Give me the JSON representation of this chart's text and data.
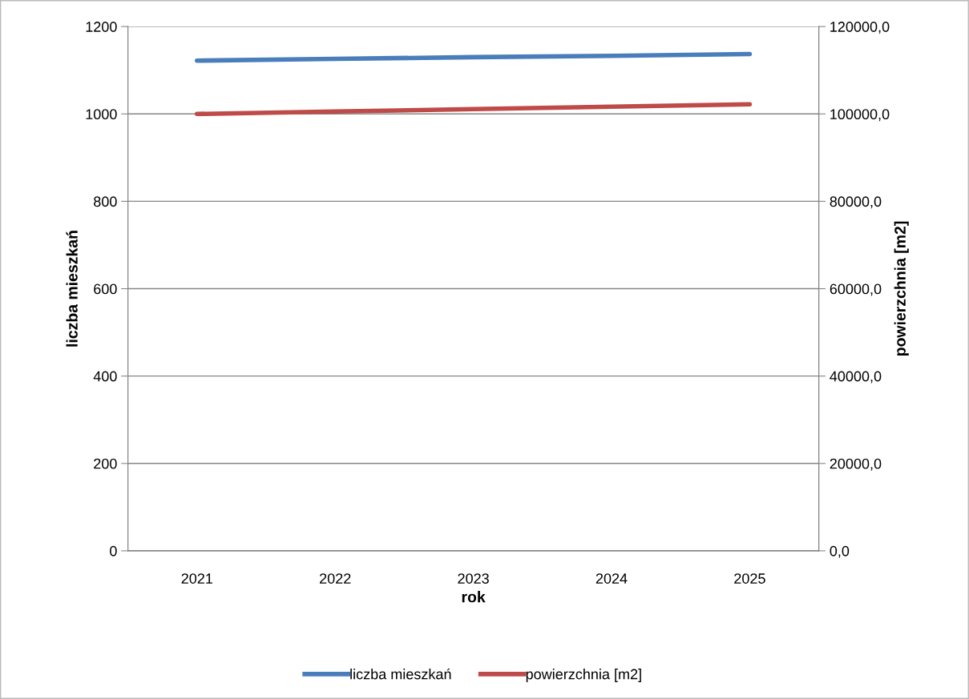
{
  "chart_data": {
    "type": "line",
    "xlabel": "rok",
    "ylabel": "liczba mieszkań",
    "y2label": "powierzchnia [m2]",
    "categories": [
      "2021",
      "2022",
      "2023",
      "2024",
      "2025"
    ],
    "series": [
      {
        "name": "liczba mieszkań",
        "color": "#4a7ebb",
        "values": [
          1122,
          1126,
          1130,
          1133,
          1137
        ]
      },
      {
        "name": "powierzchnia [m2]",
        "color": "#be4b48",
        "axis": "y2",
        "values": [
          100000,
          100550,
          101100,
          101650,
          102200
        ]
      }
    ],
    "ylim": [
      0,
      1200
    ],
    "yticks": [
      0,
      200,
      400,
      600,
      800,
      1000,
      1200
    ],
    "y2lim": [
      0,
      120000
    ],
    "y2ticks": [
      {
        "value": 0,
        "label": "0,0"
      },
      {
        "value": 20000,
        "label": "20000,0"
      },
      {
        "value": 40000,
        "label": "40000,0"
      },
      {
        "value": 60000,
        "label": "60000,0"
      },
      {
        "value": 80000,
        "label": "80000,0"
      },
      {
        "value": 100000,
        "label": "100000,0"
      },
      {
        "value": 120000,
        "label": "120000,0"
      }
    ],
    "grid": "y",
    "legend": "bottom",
    "marker": "none",
    "line_style": "solid"
  }
}
